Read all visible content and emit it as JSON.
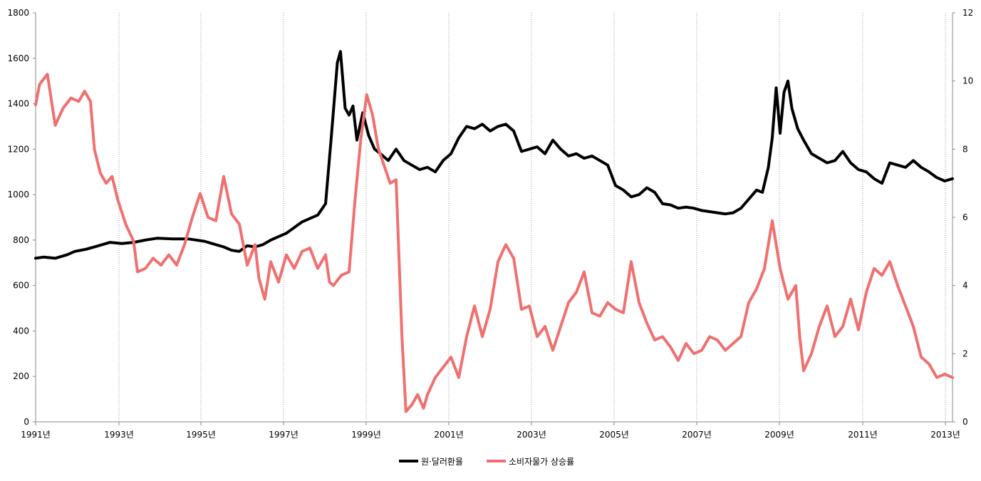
{
  "chart_data": {
    "type": "line",
    "legend_position": "bottom",
    "grid": "vertical-dotted",
    "x_range": [
      1991,
      2013.2
    ],
    "x_tick_labels": [
      "1991년",
      "1993년",
      "1995년",
      "1997년",
      "1999년",
      "2001년",
      "2003년",
      "2005년",
      "2007년",
      "2009년",
      "2011년",
      "2013년"
    ],
    "x_tick_values": [
      1991,
      1993,
      1995,
      1997,
      1999,
      2001,
      2003,
      2005,
      2007,
      2009,
      2011,
      2013
    ],
    "y_left": {
      "range": [
        0,
        1800
      ],
      "ticks": [
        0,
        200,
        400,
        600,
        800,
        1000,
        1200,
        1400,
        1600,
        1800
      ]
    },
    "y_right": {
      "range": [
        0,
        12
      ],
      "ticks": [
        0,
        2,
        4,
        6,
        8,
        10,
        12
      ]
    },
    "series": [
      {
        "name": "원·달러환율",
        "axis": "left",
        "color": "#000000",
        "points": [
          [
            1991.0,
            720
          ],
          [
            1991.2,
            725
          ],
          [
            1991.5,
            720
          ],
          [
            1991.8,
            735
          ],
          [
            1992.0,
            750
          ],
          [
            1992.3,
            760
          ],
          [
            1992.6,
            775
          ],
          [
            1992.9,
            790
          ],
          [
            1993.2,
            785
          ],
          [
            1993.5,
            790
          ],
          [
            1993.8,
            800
          ],
          [
            1994.1,
            808
          ],
          [
            1994.5,
            805
          ],
          [
            1994.9,
            805
          ],
          [
            1995.3,
            795
          ],
          [
            1995.6,
            780
          ],
          [
            1995.8,
            770
          ],
          [
            1996.0,
            755
          ],
          [
            1996.2,
            750
          ],
          [
            1996.4,
            775
          ],
          [
            1996.6,
            770
          ],
          [
            1996.8,
            780
          ],
          [
            1997.0,
            800
          ],
          [
            1997.2,
            815
          ],
          [
            1997.4,
            830
          ],
          [
            1997.6,
            855
          ],
          [
            1997.8,
            880
          ],
          [
            1998.0,
            895
          ],
          [
            1998.2,
            910
          ],
          [
            1998.4,
            960
          ],
          [
            1998.55,
            1260
          ],
          [
            1998.7,
            1580
          ],
          [
            1998.78,
            1630
          ],
          [
            1998.9,
            1380
          ],
          [
            1999.0,
            1350
          ],
          [
            1999.1,
            1390
          ],
          [
            1999.2,
            1240
          ],
          [
            1999.35,
            1360
          ],
          [
            1999.5,
            1260
          ],
          [
            1999.65,
            1200
          ],
          [
            1999.8,
            1180
          ],
          [
            2000.0,
            1150
          ],
          [
            2000.2,
            1200
          ],
          [
            2000.4,
            1150
          ],
          [
            2000.6,
            1130
          ],
          [
            2000.8,
            1110
          ],
          [
            2001.0,
            1120
          ],
          [
            2001.2,
            1100
          ],
          [
            2001.4,
            1150
          ],
          [
            2001.6,
            1180
          ],
          [
            2001.8,
            1250
          ],
          [
            2002.0,
            1300
          ],
          [
            2002.2,
            1290
          ],
          [
            2002.4,
            1310
          ],
          [
            2002.6,
            1280
          ],
          [
            2002.8,
            1300
          ],
          [
            2003.0,
            1310
          ],
          [
            2003.2,
            1280
          ],
          [
            2003.4,
            1190
          ],
          [
            2003.6,
            1200
          ],
          [
            2003.8,
            1210
          ],
          [
            2004.0,
            1180
          ],
          [
            2004.2,
            1240
          ],
          [
            2004.4,
            1200
          ],
          [
            2004.6,
            1170
          ],
          [
            2004.8,
            1180
          ],
          [
            2005.0,
            1160
          ],
          [
            2005.2,
            1170
          ],
          [
            2005.4,
            1150
          ],
          [
            2005.6,
            1130
          ],
          [
            2005.8,
            1040
          ],
          [
            2006.0,
            1020
          ],
          [
            2006.2,
            990
          ],
          [
            2006.4,
            1000
          ],
          [
            2006.6,
            1030
          ],
          [
            2006.8,
            1010
          ],
          [
            2007.0,
            960
          ],
          [
            2007.2,
            955
          ],
          [
            2007.4,
            940
          ],
          [
            2007.6,
            945
          ],
          [
            2007.8,
            940
          ],
          [
            2008.0,
            930
          ],
          [
            2008.2,
            925
          ],
          [
            2008.4,
            920
          ],
          [
            2008.6,
            915
          ],
          [
            2008.8,
            920
          ],
          [
            2009.0,
            940
          ],
          [
            2009.2,
            980
          ],
          [
            2009.4,
            1020
          ],
          [
            2009.55,
            1010
          ],
          [
            2009.7,
            1120
          ],
          [
            2009.8,
            1250
          ],
          [
            2009.9,
            1470
          ],
          [
            2010.0,
            1270
          ],
          [
            2010.1,
            1450
          ],
          [
            2010.2,
            1500
          ],
          [
            2010.3,
            1380
          ],
          [
            2010.45,
            1290
          ],
          [
            2010.6,
            1240
          ],
          [
            2010.8,
            1180
          ],
          [
            2011.0,
            1160
          ],
          [
            2011.2,
            1140
          ],
          [
            2011.4,
            1150
          ],
          [
            2011.6,
            1190
          ],
          [
            2011.8,
            1140
          ],
          [
            2012.0,
            1110
          ],
          [
            2012.2,
            1100
          ],
          [
            2012.4,
            1070
          ],
          [
            2012.6,
            1050
          ],
          [
            2012.8,
            1140
          ],
          [
            2013.0,
            1130
          ],
          [
            2013.2,
            1120
          ],
          [
            2013.4,
            1150
          ],
          [
            2013.6,
            1120
          ],
          [
            2013.8,
            1100
          ],
          [
            2014.0,
            1075
          ],
          [
            2014.2,
            1060
          ],
          [
            2014.4,
            1070
          ]
        ]
      },
      {
        "name": "소비자물가 상승률",
        "axis": "right",
        "color": "#F07070",
        "points": [
          [
            1991.0,
            9.3
          ],
          [
            1991.1,
            9.9
          ],
          [
            1991.3,
            10.2
          ],
          [
            1991.5,
            8.7
          ],
          [
            1991.7,
            9.2
          ],
          [
            1991.9,
            9.5
          ],
          [
            1992.1,
            9.4
          ],
          [
            1992.25,
            9.7
          ],
          [
            1992.4,
            9.4
          ],
          [
            1992.5,
            8.0
          ],
          [
            1992.65,
            7.3
          ],
          [
            1992.8,
            7.0
          ],
          [
            1992.95,
            7.2
          ],
          [
            1993.1,
            6.5
          ],
          [
            1993.3,
            5.8
          ],
          [
            1993.5,
            5.3
          ],
          [
            1993.6,
            4.4
          ],
          [
            1993.8,
            4.5
          ],
          [
            1994.0,
            4.8
          ],
          [
            1994.2,
            4.6
          ],
          [
            1994.4,
            4.9
          ],
          [
            1994.6,
            4.6
          ],
          [
            1994.8,
            5.2
          ],
          [
            1995.0,
            6.0
          ],
          [
            1995.2,
            6.7
          ],
          [
            1995.4,
            6.0
          ],
          [
            1995.6,
            5.9
          ],
          [
            1995.8,
            7.2
          ],
          [
            1996.0,
            6.1
          ],
          [
            1996.2,
            5.8
          ],
          [
            1996.4,
            4.6
          ],
          [
            1996.6,
            5.2
          ],
          [
            1996.7,
            4.2
          ],
          [
            1996.85,
            3.6
          ],
          [
            1997.0,
            4.7
          ],
          [
            1997.2,
            4.1
          ],
          [
            1997.4,
            4.9
          ],
          [
            1997.6,
            4.5
          ],
          [
            1997.8,
            5.0
          ],
          [
            1998.0,
            5.1
          ],
          [
            1998.2,
            4.5
          ],
          [
            1998.4,
            4.9
          ],
          [
            1998.5,
            4.1
          ],
          [
            1998.6,
            4.0
          ],
          [
            1998.8,
            4.3
          ],
          [
            1999.0,
            4.4
          ],
          [
            1999.15,
            6.5
          ],
          [
            1999.3,
            8.3
          ],
          [
            1999.45,
            9.6
          ],
          [
            1999.6,
            9.0
          ],
          [
            1999.75,
            8.0
          ],
          [
            1999.9,
            7.5
          ],
          [
            2000.05,
            7.0
          ],
          [
            2000.2,
            7.1
          ],
          [
            2000.35,
            2.5
          ],
          [
            2000.45,
            0.3
          ],
          [
            2000.6,
            0.5
          ],
          [
            2000.75,
            0.8
          ],
          [
            2000.9,
            0.4
          ],
          [
            2001.0,
            0.8
          ],
          [
            2001.2,
            1.3
          ],
          [
            2001.4,
            1.6
          ],
          [
            2001.6,
            1.9
          ],
          [
            2001.8,
            1.3
          ],
          [
            2002.0,
            2.5
          ],
          [
            2002.2,
            3.4
          ],
          [
            2002.4,
            2.5
          ],
          [
            2002.6,
            3.3
          ],
          [
            2002.8,
            4.7
          ],
          [
            2003.0,
            5.2
          ],
          [
            2003.2,
            4.8
          ],
          [
            2003.4,
            3.3
          ],
          [
            2003.6,
            3.4
          ],
          [
            2003.8,
            2.5
          ],
          [
            2004.0,
            2.8
          ],
          [
            2004.2,
            2.1
          ],
          [
            2004.4,
            2.8
          ],
          [
            2004.6,
            3.5
          ],
          [
            2004.8,
            3.8
          ],
          [
            2005.0,
            4.4
          ],
          [
            2005.2,
            3.2
          ],
          [
            2005.4,
            3.1
          ],
          [
            2005.6,
            3.5
          ],
          [
            2005.8,
            3.3
          ],
          [
            2006.0,
            3.2
          ],
          [
            2006.2,
            4.7
          ],
          [
            2006.4,
            3.5
          ],
          [
            2006.6,
            2.9
          ],
          [
            2006.8,
            2.4
          ],
          [
            2007.0,
            2.5
          ],
          [
            2007.2,
            2.2
          ],
          [
            2007.4,
            1.8
          ],
          [
            2007.6,
            2.3
          ],
          [
            2007.8,
            2.0
          ],
          [
            2008.0,
            2.1
          ],
          [
            2008.2,
            2.5
          ],
          [
            2008.4,
            2.4
          ],
          [
            2008.6,
            2.1
          ],
          [
            2008.8,
            2.3
          ],
          [
            2009.0,
            2.5
          ],
          [
            2009.2,
            3.5
          ],
          [
            2009.4,
            3.9
          ],
          [
            2009.6,
            4.5
          ],
          [
            2009.8,
            5.9
          ],
          [
            2010.0,
            4.5
          ],
          [
            2010.2,
            3.6
          ],
          [
            2010.4,
            4.0
          ],
          [
            2010.5,
            2.5
          ],
          [
            2010.6,
            1.5
          ],
          [
            2010.8,
            2.0
          ],
          [
            2011.0,
            2.8
          ],
          [
            2011.2,
            3.4
          ],
          [
            2011.4,
            2.5
          ],
          [
            2011.6,
            2.8
          ],
          [
            2011.8,
            3.6
          ],
          [
            2012.0,
            2.7
          ],
          [
            2012.2,
            3.8
          ],
          [
            2012.4,
            4.5
          ],
          [
            2012.6,
            4.3
          ],
          [
            2012.8,
            4.7
          ],
          [
            2013.0,
            4.0
          ],
          [
            2013.2,
            3.4
          ],
          [
            2013.4,
            2.8
          ],
          [
            2013.6,
            1.9
          ],
          [
            2013.8,
            1.7
          ],
          [
            2014.0,
            1.3
          ],
          [
            2014.2,
            1.4
          ],
          [
            2014.4,
            1.3
          ]
        ]
      }
    ]
  }
}
